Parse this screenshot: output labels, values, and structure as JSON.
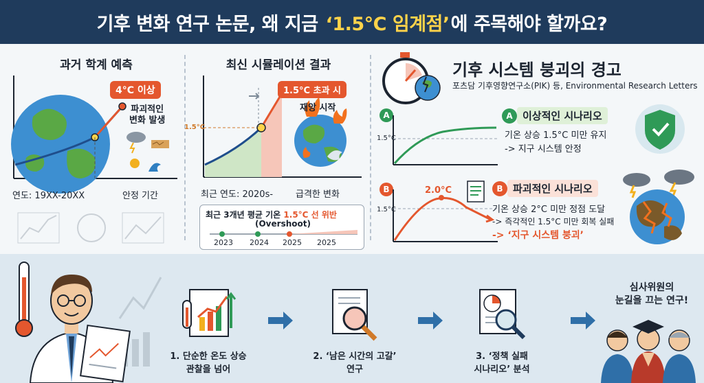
{
  "header": {
    "title_pre": "기후 변화 연구 논문, 왜 지금",
    "title_highlight": "‘1.5°C 임계점’",
    "title_post": "에 주목해야 할까요?"
  },
  "past": {
    "title": "과거 학계 예측",
    "badge": "4°C 이상",
    "note_line1": "파괴적인",
    "note_line2": "변화 발생",
    "x_left": "연도: 19XX-20XX",
    "x_right": "안정 기간"
  },
  "recent": {
    "title": "최신 시뮬레이션 결과",
    "badge": "1.5°C 초과 시",
    "note": "재앙 시작",
    "y_mark": "1.5°C",
    "x_left": "최근 연도: 2020s-",
    "x_right": "급격한 변화",
    "box_line1_pre": "최근 3개년 평균 기온",
    "box_line1_hl": "1.5°C 선 위반",
    "box_line2": "(Overshoot)",
    "years": [
      "2023",
      "2024",
      "2025",
      "2025"
    ]
  },
  "warning": {
    "title": "기후 시스템 붕괴의 경고",
    "source": "포츠담 기후영향연구소(PIK) 등, Environmental Research Letters",
    "a_letter": "A",
    "a_title": "이상적인 시나리오",
    "a_line1": "기온 상승 1.5°C 미만 유지",
    "a_line2": "-> 지구 시스템 안정",
    "a_ymark": "1.5°C",
    "b_letter": "B",
    "b_title": "파괴적인 시나리오",
    "b_peak": "2.0°C",
    "b_ymark": "1.5°C",
    "b_line1": "기온 상승 2°C 미만 정점 도달",
    "b_line2": "-> 즉각적인 1.5°C 미만 회복 실패",
    "b_line3": "-> ‘지구 시스템 붕괴’"
  },
  "steps": [
    {
      "line1": "1. 단순한 온도 상승",
      "line2": "관찰을 넘어"
    },
    {
      "line1": "2. ‘남은 시간의 고갈’",
      "line2": "연구"
    },
    {
      "line1": "3. ‘정책 실패",
      "line2": "시나리오’ 분석"
    }
  ],
  "result": {
    "line1": "심사위원의",
    "line2": "눈길을 끄는 연구!"
  },
  "colors": {
    "accent_red": "#e4572e",
    "header_bg": "#1f3b5c",
    "highlight": "#ffd34a",
    "green": "#2f9a57"
  }
}
